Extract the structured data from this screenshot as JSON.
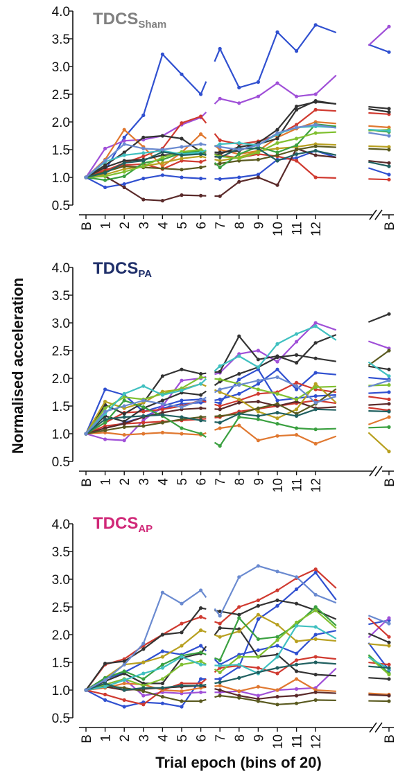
{
  "figure": {
    "ylabel": "Normalised acceleration",
    "xlabel": "Trial epoch (bins of 20)"
  },
  "chart_data": [
    {
      "type": "line",
      "title": "TDCS",
      "title_subscript": "Sham",
      "title_color": "#808080",
      "ylim": [
        0.5,
        4.0
      ],
      "yticks": [
        "0.5",
        "1.0",
        "1.5",
        "2.0",
        "2.5",
        "3.0",
        "3.5",
        "4.0"
      ],
      "x_tick_labels": [
        "B",
        "1",
        "2",
        "3",
        "4",
        "5",
        "6",
        "7",
        "8",
        "9",
        "10",
        "11",
        "12",
        "B"
      ],
      "series": [
        {
          "color": "#3050d0",
          "values": [
            1.0,
            0.82,
            0.88,
            0.98,
            1.04,
            1.0,
            0.98,
            0.97,
            1.0,
            1.05,
            1.32,
            1.35,
            1.48,
            1.05
          ]
        },
        {
          "color": "#3050d0",
          "values": [
            1.0,
            1.12,
            1.72,
            2.12,
            3.22,
            2.86,
            2.5,
            3.32,
            2.62,
            2.72,
            3.62,
            3.28,
            3.75,
            3.26
          ]
        },
        {
          "color": "#a050d8",
          "values": [
            1.0,
            1.52,
            1.66,
            1.68,
            1.75,
            1.95,
            2.08,
            2.42,
            2.34,
            2.46,
            2.7,
            2.46,
            2.5,
            3.72
          ]
        },
        {
          "color": "#d03a30",
          "values": [
            1.0,
            1.12,
            1.26,
            1.38,
            1.52,
            1.98,
            2.1,
            1.67,
            1.6,
            1.65,
            1.76,
            1.95,
            2.22,
            2.14
          ]
        },
        {
          "color": "#d03a30",
          "values": [
            1.0,
            1.14,
            1.22,
            1.24,
            1.15,
            1.3,
            1.28,
            1.4,
            1.35,
            1.42,
            1.38,
            1.3,
            1.0,
            0.96
          ]
        },
        {
          "color": "#e07830",
          "values": [
            1.0,
            1.32,
            1.86,
            1.55,
            1.2,
            1.45,
            1.78,
            1.5,
            1.42,
            1.48,
            1.72,
            1.88,
            2.0,
            1.9
          ]
        },
        {
          "color": "#333333",
          "values": [
            1.0,
            1.22,
            1.45,
            1.72,
            1.75,
            1.7,
            1.46,
            1.45,
            1.48,
            1.62,
            1.86,
            2.28,
            2.36,
            2.24
          ]
        },
        {
          "color": "#333333",
          "values": [
            1.0,
            1.18,
            1.3,
            1.32,
            1.4,
            1.42,
            1.42,
            1.42,
            1.55,
            1.6,
            1.7,
            2.22,
            2.38,
            2.18
          ]
        },
        {
          "color": "#5a2a2a",
          "values": [
            1.0,
            1.02,
            0.82,
            0.6,
            0.58,
            0.68,
            0.67,
            0.66,
            0.92,
            1.0,
            0.86,
            1.52,
            1.4,
            1.26
          ]
        },
        {
          "color": "#b8a020",
          "values": [
            1.0,
            1.05,
            1.15,
            1.2,
            1.26,
            1.34,
            1.38,
            1.3,
            1.36,
            1.48,
            1.52,
            1.55,
            1.6,
            1.55
          ]
        },
        {
          "color": "#5a5a20",
          "values": [
            1.0,
            1.1,
            1.2,
            1.18,
            1.16,
            1.14,
            1.18,
            1.25,
            1.3,
            1.32,
            1.4,
            1.5,
            1.56,
            1.5
          ]
        },
        {
          "color": "#3aa040",
          "values": [
            1.0,
            0.95,
            1.02,
            1.26,
            1.32,
            1.44,
            1.48,
            1.18,
            1.42,
            1.55,
            1.45,
            1.58,
            1.96,
            1.82
          ]
        },
        {
          "color": "#80c030",
          "values": [
            1.0,
            1.02,
            1.1,
            1.2,
            1.36,
            1.46,
            1.5,
            1.38,
            1.34,
            1.45,
            1.62,
            1.7,
            1.8,
            1.86
          ]
        },
        {
          "color": "#40c0c0",
          "values": [
            1.0,
            1.28,
            1.4,
            1.44,
            1.48,
            1.42,
            1.45,
            1.6,
            1.62,
            1.58,
            1.78,
            1.9,
            1.92,
            1.84
          ]
        },
        {
          "color": "#206060",
          "values": [
            1.0,
            1.08,
            1.26,
            1.3,
            1.46,
            1.4,
            1.42,
            1.36,
            1.52,
            1.52,
            1.3,
            1.42,
            1.48,
            1.2
          ]
        },
        {
          "color": "#6a8ad0",
          "values": [
            1.0,
            1.3,
            1.6,
            1.52,
            1.5,
            1.55,
            1.6,
            1.55,
            1.5,
            1.58,
            1.8,
            1.9,
            1.95,
            1.75
          ]
        }
      ]
    },
    {
      "type": "line",
      "title": "TDCS",
      "title_subscript": "PA",
      "title_color": "#1f2f6a",
      "ylim": [
        0.5,
        4.0
      ],
      "yticks": [
        "0.5",
        "1.0",
        "1.5",
        "2.0",
        "2.5",
        "3.0",
        "3.5",
        "4.0"
      ],
      "x_tick_labels": [
        "B",
        "1",
        "2",
        "3",
        "4",
        "5",
        "6",
        "7",
        "8",
        "9",
        "10",
        "11",
        "12",
        "B"
      ],
      "series": [
        {
          "color": "#3050d0",
          "values": [
            1.0,
            1.8,
            1.7,
            1.4,
            1.5,
            1.6,
            1.62,
            1.55,
            1.98,
            2.16,
            1.6,
            1.64,
            1.68,
            1.75
          ]
        },
        {
          "color": "#3050d0",
          "values": [
            1.0,
            1.1,
            1.2,
            1.3,
            1.46,
            1.54,
            1.56,
            1.62,
            1.72,
            1.9,
            2.16,
            1.8,
            2.1,
            1.98
          ]
        },
        {
          "color": "#a050d8",
          "values": [
            1.0,
            0.9,
            0.88,
            1.24,
            1.5,
            1.96,
            2.0,
            2.1,
            2.44,
            2.5,
            2.3,
            2.66,
            3.0,
            2.54
          ]
        },
        {
          "color": "#d03a30",
          "values": [
            1.0,
            1.2,
            1.38,
            1.4,
            1.44,
            1.5,
            1.6,
            1.5,
            1.6,
            1.72,
            1.75,
            1.92,
            1.8,
            1.62
          ]
        },
        {
          "color": "#d03a30",
          "values": [
            1.0,
            1.14,
            1.18,
            1.2,
            1.22,
            1.24,
            1.26,
            1.3,
            1.4,
            1.45,
            1.5,
            1.55,
            1.6,
            1.42
          ]
        },
        {
          "color": "#e07830",
          "values": [
            1.0,
            1.02,
            0.98,
            1.0,
            1.02,
            1.0,
            0.98,
            1.1,
            1.15,
            0.88,
            0.96,
            0.98,
            0.82,
            1.3
          ]
        },
        {
          "color": "#333333",
          "values": [
            1.0,
            1.52,
            1.36,
            1.56,
            2.04,
            2.16,
            2.08,
            2.12,
            2.76,
            2.34,
            2.4,
            2.28,
            2.64,
            3.16
          ]
        },
        {
          "color": "#333333",
          "values": [
            1.0,
            1.32,
            1.22,
            1.46,
            1.6,
            1.74,
            1.7,
            1.94,
            2.08,
            2.2,
            2.38,
            2.42,
            2.36,
            2.16
          ]
        },
        {
          "color": "#5a2a2a",
          "values": [
            1.0,
            1.1,
            1.18,
            1.3,
            1.38,
            1.44,
            1.46,
            1.44,
            1.56,
            1.58,
            1.5,
            1.58,
            1.46,
            1.54
          ]
        },
        {
          "color": "#b8a020",
          "values": [
            1.0,
            1.58,
            1.46,
            1.56,
            1.76,
            1.8,
            1.9,
            1.75,
            1.62,
            1.4,
            1.28,
            1.44,
            1.9,
            0.68
          ]
        },
        {
          "color": "#5a5a20",
          "values": [
            1.0,
            1.06,
            1.12,
            1.14,
            1.2,
            1.26,
            1.3,
            1.32,
            1.36,
            1.46,
            1.54,
            1.36,
            1.54,
            2.5
          ]
        },
        {
          "color": "#3aa040",
          "values": [
            1.0,
            1.2,
            1.6,
            1.48,
            1.32,
            1.1,
            1.0,
            0.78,
            1.3,
            1.26,
            1.18,
            1.1,
            1.08,
            1.12
          ]
        },
        {
          "color": "#80c030",
          "values": [
            1.0,
            1.46,
            1.66,
            1.62,
            1.72,
            1.82,
            2.02,
            1.98,
            1.9,
            1.8,
            1.72,
            1.62,
            1.84,
            1.88
          ]
        },
        {
          "color": "#40c0c0",
          "values": [
            1.0,
            1.36,
            1.72,
            1.86,
            1.7,
            1.78,
            1.9,
            2.22,
            2.4,
            2.2,
            2.62,
            2.8,
            2.94,
            2.04
          ]
        },
        {
          "color": "#206060",
          "values": [
            1.0,
            1.26,
            1.3,
            1.32,
            1.34,
            1.3,
            1.24,
            1.2,
            1.36,
            1.32,
            1.38,
            1.32,
            1.44,
            1.4
          ]
        },
        {
          "color": "#6a8ad0",
          "values": [
            1.0,
            1.4,
            1.5,
            1.6,
            1.54,
            1.48,
            1.6,
            1.8,
            1.88,
            1.96,
            2.02,
            1.86,
            1.56,
            1.96
          ]
        }
      ]
    },
    {
      "type": "line",
      "title": "TDCS",
      "title_subscript": "AP",
      "title_color": "#d02878",
      "ylim": [
        0.5,
        4.0
      ],
      "yticks": [
        "0.5",
        "1.0",
        "1.5",
        "2.0",
        "2.5",
        "3.0",
        "3.5",
        "4.0"
      ],
      "x_tick_labels": [
        "B",
        "1",
        "2",
        "3",
        "4",
        "5",
        "6",
        "7",
        "8",
        "9",
        "10",
        "11",
        "12",
        "B"
      ],
      "series": [
        {
          "color": "#3050d0",
          "values": [
            1.0,
            0.82,
            0.7,
            0.78,
            0.76,
            0.7,
            1.2,
            1.2,
            1.42,
            2.28,
            2.52,
            2.82,
            3.12,
            1.36
          ]
        },
        {
          "color": "#3050d0",
          "values": [
            1.0,
            1.2,
            1.32,
            1.5,
            1.7,
            1.64,
            1.8,
            1.46,
            1.64,
            1.72,
            1.8,
            1.66,
            2.0,
            2.26
          ]
        },
        {
          "color": "#a050d8",
          "values": [
            1.0,
            1.1,
            1.2,
            0.9,
            0.96,
            0.94,
            0.96,
            0.96,
            0.98,
            0.9,
            1.0,
            1.02,
            1.04,
            2.3
          ]
        },
        {
          "color": "#d03a30",
          "values": [
            1.0,
            1.46,
            1.56,
            1.8,
            2.0,
            2.2,
            2.32,
            2.2,
            2.5,
            2.62,
            2.8,
            3.02,
            3.18,
            1.96
          ]
        },
        {
          "color": "#d03a30",
          "values": [
            1.0,
            0.92,
            0.82,
            0.74,
            1.0,
            1.12,
            1.12,
            1.4,
            1.44,
            1.4,
            1.3,
            1.54,
            1.6,
            1.46
          ]
        },
        {
          "color": "#e07830",
          "values": [
            1.0,
            1.04,
            1.12,
            1.1,
            1.0,
            0.98,
            1.04,
            1.08,
            0.98,
            1.06,
            1.0,
            1.2,
            1.0,
            0.92
          ]
        },
        {
          "color": "#333333",
          "values": [
            1.0,
            1.48,
            1.52,
            1.74,
            2.0,
            2.04,
            2.48,
            2.42,
            2.36,
            2.52,
            2.62,
            2.56,
            2.44,
            1.86
          ]
        },
        {
          "color": "#333333",
          "values": [
            1.0,
            1.16,
            1.3,
            1.12,
            1.12,
            1.58,
            1.66,
            2.12,
            2.1,
            1.6,
            1.64,
            1.34,
            1.28,
            1.2
          ]
        },
        {
          "color": "#5a2a2a",
          "values": [
            1.0,
            1.06,
            1.0,
            1.02,
            1.04,
            1.06,
            1.08,
            1.0,
            0.9,
            0.84,
            0.88,
            0.9,
            0.96,
            0.9
          ]
        },
        {
          "color": "#b8a020",
          "values": [
            1.0,
            1.22,
            1.46,
            1.5,
            1.6,
            1.8,
            2.08,
            1.96,
            2.06,
            2.36,
            2.18,
            1.88,
            1.92,
            1.8
          ]
        },
        {
          "color": "#5a5a20",
          "values": [
            1.0,
            1.08,
            1.04,
            0.98,
            0.88,
            0.8,
            0.8,
            0.9,
            0.86,
            0.8,
            0.74,
            0.76,
            0.82,
            0.8
          ]
        },
        {
          "color": "#3aa040",
          "values": [
            1.0,
            1.22,
            1.34,
            1.2,
            1.46,
            1.62,
            1.68,
            1.54,
            2.3,
            1.92,
            1.96,
            2.18,
            2.5,
            1.3
          ]
        },
        {
          "color": "#80c030",
          "values": [
            1.0,
            1.1,
            1.2,
            1.08,
            1.2,
            1.46,
            1.52,
            1.32,
            1.6,
            1.6,
            1.9,
            2.22,
            2.44,
            1.28
          ]
        },
        {
          "color": "#40c0c0",
          "values": [
            1.0,
            1.06,
            1.18,
            1.3,
            1.4,
            1.6,
            1.46,
            1.44,
            1.46,
            1.3,
            1.6,
            2.16,
            2.14,
            1.38
          ]
        },
        {
          "color": "#206060",
          "values": [
            1.0,
            1.12,
            1.0,
            1.04,
            1.04,
            1.08,
            1.08,
            1.14,
            1.22,
            1.32,
            1.4,
            1.46,
            1.5,
            1.4
          ]
        },
        {
          "color": "#6a8ad0",
          "values": [
            1.0,
            1.18,
            1.46,
            1.84,
            2.76,
            2.56,
            2.8,
            2.34,
            3.04,
            3.24,
            3.14,
            3.04,
            2.72,
            2.2
          ]
        }
      ]
    }
  ]
}
